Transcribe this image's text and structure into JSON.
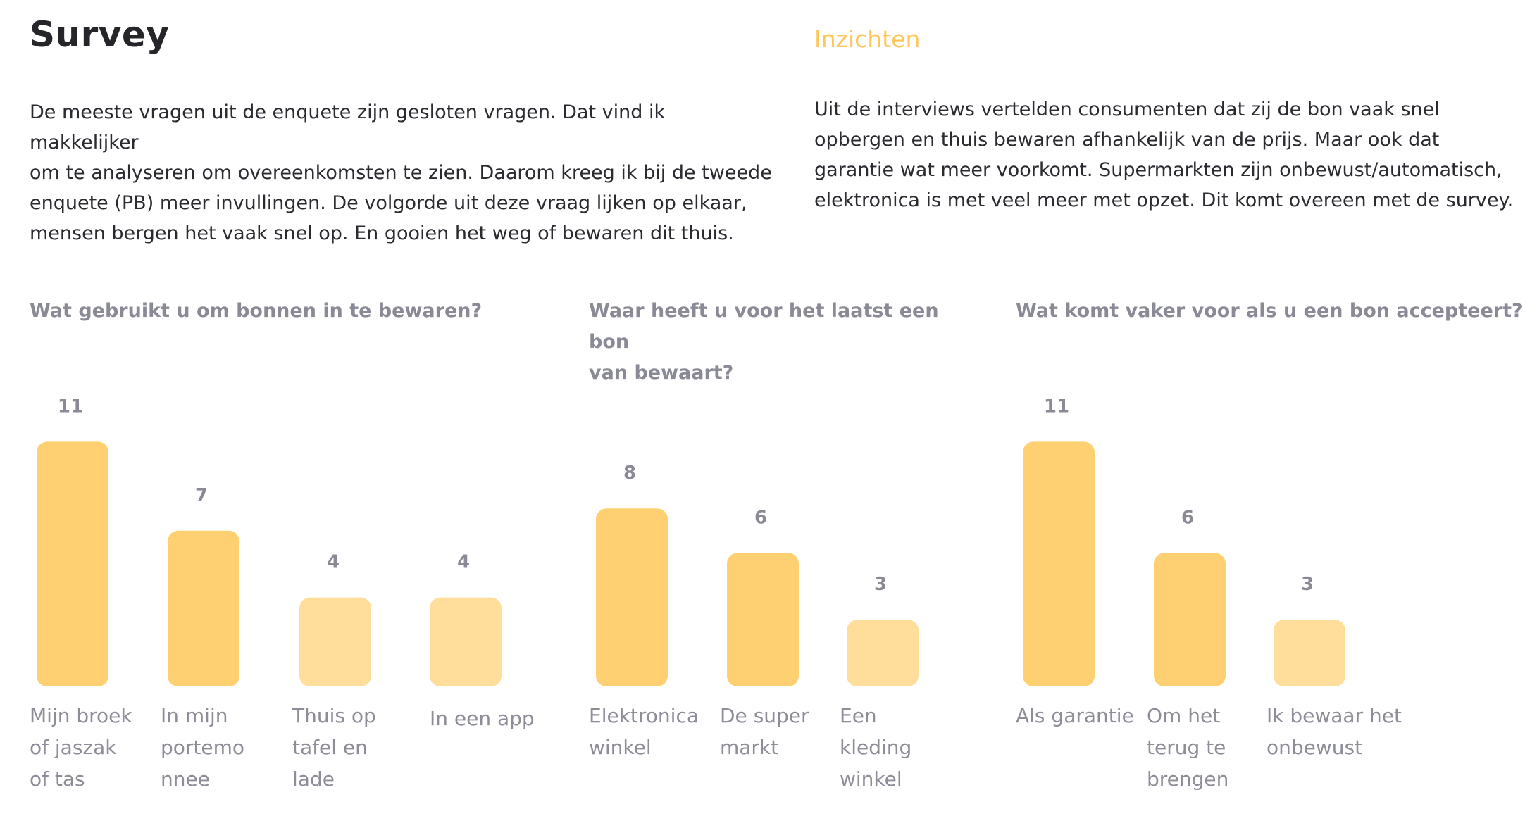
{
  "header": {
    "title": "Survey",
    "insights_title": "Inzichten"
  },
  "colors": {
    "accent": "#FFC65C",
    "bar_dark": "#FFD072",
    "bar_light": "#FFDD9A",
    "muted_text": "#8A8A96"
  },
  "intro": {
    "lines": [
      "De meeste vragen uit de enquete zijn gesloten vragen. Dat vind ik makkelijker",
      "om te analyseren om overeenkomsten te zien. Daarom kreeg ik bij de tweede",
      "enquete (PB) meer invullingen. De volgorde uit deze vraag lijken op elkaar,",
      "mensen bergen het vaak snel op. En gooien het weg of bewaren dit thuis."
    ]
  },
  "insights": {
    "lines": [
      "Uit de interviews vertelden consumenten dat zij de bon vaak snel",
      "opbergen en thuis bewaren afhankelijk van de prijs. Maar ook dat",
      "garantie wat meer voorkomt. Supermarkten zijn onbewust/automatisch,",
      "elektronica is met veel meer met opzet. Dit komt overeen met de survey."
    ]
  },
  "chart_data": [
    {
      "type": "bar",
      "title_lines": [
        "Wat gebruikt u om bonnen in te bewaren?"
      ],
      "categories": [
        [
          "Mijn broek",
          "of jaszak",
          "of tas"
        ],
        [
          "In mijn",
          "portemo",
          "nnee"
        ],
        [
          "Thuis op",
          "tafel en",
          "lade"
        ],
        [
          "In een app"
        ]
      ],
      "values": [
        11,
        7,
        4,
        4
      ],
      "bar_shades": [
        "dark",
        "dark",
        "light",
        "light"
      ]
    },
    {
      "type": "bar",
      "title_lines": [
        "Waar heeft u voor het laatst een bon",
        "van bewaart?"
      ],
      "categories": [
        [
          "Elektronica",
          "winkel"
        ],
        [
          "De super",
          "markt"
        ],
        [
          "Een",
          "kleding",
          "winkel"
        ]
      ],
      "values": [
        8,
        6,
        3
      ],
      "bar_shades": [
        "dark",
        "dark",
        "light"
      ]
    },
    {
      "type": "bar",
      "title_lines": [
        "Wat komt vaker voor als u een bon accepteert?"
      ],
      "categories": [
        [
          "Als garantie"
        ],
        [
          "Om het",
          "terug te",
          "brengen"
        ],
        [
          "Ik bewaar het",
          "onbewust"
        ]
      ],
      "values": [
        11,
        6,
        3
      ],
      "bar_shades": [
        "dark",
        "dark",
        "light"
      ]
    }
  ]
}
